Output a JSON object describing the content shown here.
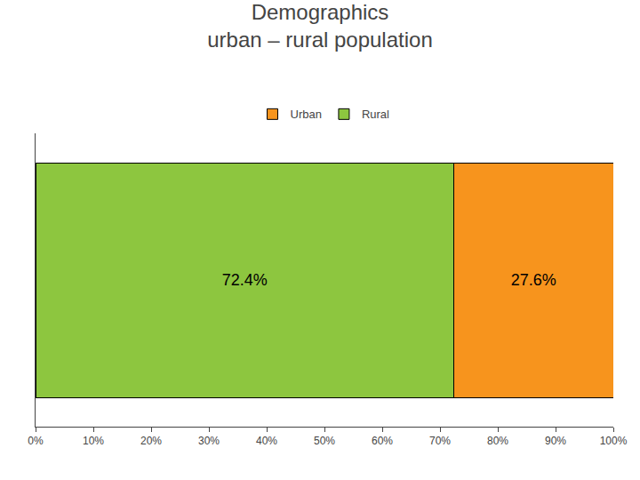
{
  "chart_data": {
    "type": "bar",
    "title": "Demographics",
    "subtitle": "urban – rural population",
    "orientation": "horizontal",
    "stacked": true,
    "categories": [
      null
    ],
    "series": [
      {
        "name": "Rural",
        "color": "#8dc63f",
        "values": [
          72.4
        ],
        "value_labels": [
          "72.4%"
        ]
      },
      {
        "name": "Urban",
        "color": "#f7941d",
        "values": [
          27.6
        ],
        "value_labels": [
          "27.6%"
        ]
      }
    ],
    "data_labels": true,
    "xlim": [
      0,
      100
    ],
    "xticks": [
      {
        "value": 0,
        "label": "0%"
      },
      {
        "value": 10,
        "label": "10%"
      },
      {
        "value": 20,
        "label": "20%"
      },
      {
        "value": 30,
        "label": "30%"
      },
      {
        "value": 40,
        "label": "40%"
      },
      {
        "value": 50,
        "label": "50%"
      },
      {
        "value": 60,
        "label": "60%"
      },
      {
        "value": 70,
        "label": "70%"
      },
      {
        "value": 80,
        "label": "80%"
      },
      {
        "value": 90,
        "label": "90%"
      },
      {
        "value": 100,
        "label": "100%"
      }
    ],
    "tick_labels": "x",
    "grid": false,
    "legend": "top"
  }
}
